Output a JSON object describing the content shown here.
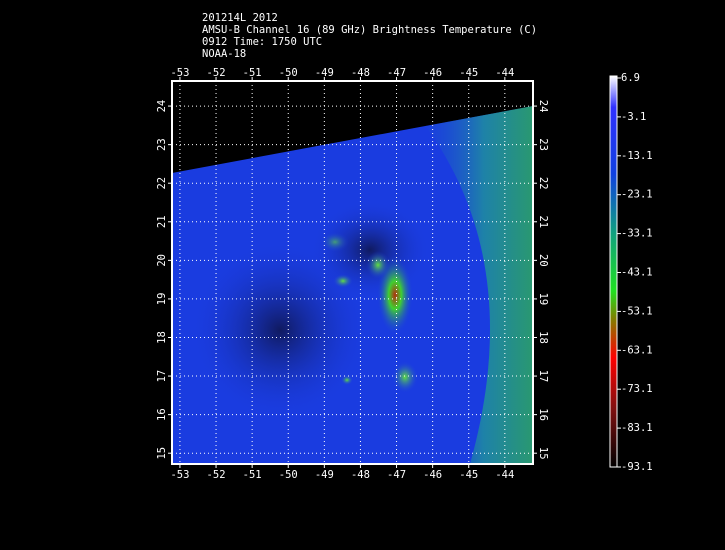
{
  "header": {
    "lines": [
      "201214L 2012",
      "AMSU-B Channel 16 (89 GHz) Brightness Temperature (C)",
      "0912 Time: 1750 UTC",
      "NOAA-18"
    ]
  },
  "map": {
    "xlim": [
      -53.22,
      -43.22
    ],
    "ylim": [
      14.72,
      24.65
    ],
    "xticks": [
      -53,
      -52,
      -51,
      -50,
      -49,
      -48,
      -47,
      -46,
      -45,
      -44
    ],
    "yticks": [
      15,
      16,
      17,
      18,
      19,
      20,
      21,
      22,
      23,
      24
    ],
    "grid": true
  },
  "colorbar": {
    "range": [
      -93.1,
      6.9
    ],
    "ticks": [
      6.9,
      -3.1,
      -13.1,
      -23.1,
      -33.1,
      -43.1,
      -53.1,
      -63.1,
      -73.1,
      -83.1,
      -93.1
    ]
  }
}
